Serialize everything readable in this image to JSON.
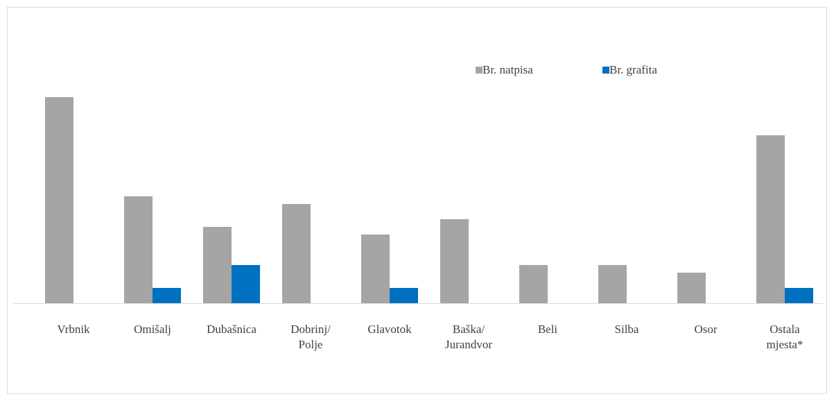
{
  "chart_data": {
    "type": "bar",
    "categories": [
      "Vrbnik",
      "Omišalj",
      "Dubašnica",
      "Dobrinj/\nPolje",
      "Glavotok",
      "Baška/\nJurandvor",
      "Beli",
      "Silba",
      "Osor",
      "Ostala\nmjesta*"
    ],
    "series": [
      {
        "name": "Br. natpisa",
        "color": "#a5a5a5",
        "values": [
          27,
          14,
          10,
          13,
          9,
          11,
          5,
          5,
          4,
          22
        ]
      },
      {
        "name": "Br. grafita",
        "color": "#0070c0",
        "values": [
          0,
          2,
          5,
          0,
          2,
          0,
          0,
          0,
          0,
          2
        ]
      }
    ],
    "ylim": [
      0,
      28
    ],
    "legend": "top-right"
  }
}
